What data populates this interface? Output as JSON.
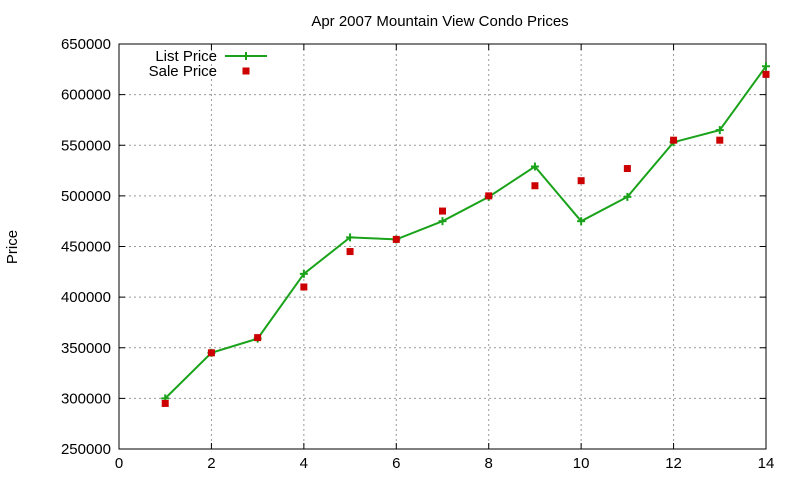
{
  "chart_data": {
    "type": "line",
    "title": "Apr 2007 Mountain View Condo Prices",
    "xlabel": "",
    "ylabel": "Price",
    "xlim": [
      0,
      14
    ],
    "ylim": [
      250000,
      650000
    ],
    "x_ticks": [
      "0",
      "2",
      "4",
      "6",
      "8",
      "10",
      "12",
      "14"
    ],
    "y_ticks": [
      "250000",
      "300000",
      "350000",
      "400000",
      "450000",
      "500000",
      "550000",
      "600000",
      "650000"
    ],
    "grid": true,
    "legend_position": "top-left",
    "series": [
      {
        "name": "List Price",
        "style": "line+crosses",
        "color": "#1aa31a",
        "x": [
          1,
          2,
          3,
          4,
          5,
          6,
          7,
          8,
          9,
          10,
          11,
          12,
          13,
          14
        ],
        "y": [
          300000,
          345000,
          359000,
          423000,
          459000,
          457000,
          475000,
          499000,
          529000,
          475000,
          499000,
          553000,
          565000,
          628000
        ]
      },
      {
        "name": "Sale Price",
        "style": "squares",
        "color": "#cc0000",
        "x": [
          1,
          2,
          3,
          4,
          5,
          6,
          7,
          8,
          9,
          10,
          11,
          12,
          13,
          14
        ],
        "y": [
          295000,
          345000,
          360000,
          410000,
          445000,
          457000,
          485000,
          500000,
          510000,
          515000,
          527000,
          555000,
          555000,
          620000
        ]
      }
    ]
  }
}
